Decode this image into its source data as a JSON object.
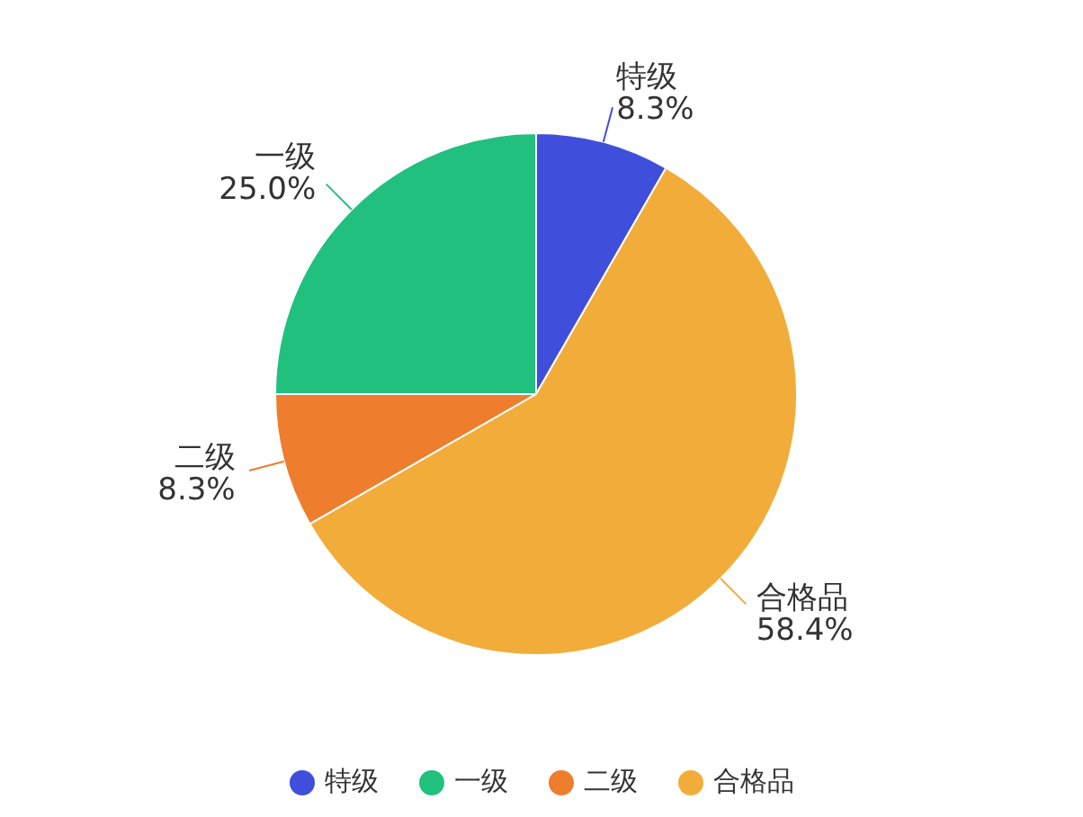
{
  "chart_data": {
    "type": "pie",
    "categories": [
      "特级",
      "一级",
      "二级",
      "合格品"
    ],
    "values": [
      8.3,
      25.0,
      8.3,
      58.4
    ],
    "value_labels": [
      "8.3%",
      "25.0%",
      "8.3%",
      "58.4%"
    ],
    "colors": [
      "#3f4fdc",
      "#22c07f",
      "#ee7d2e",
      "#f2ac3a"
    ],
    "legend": "bottom"
  }
}
